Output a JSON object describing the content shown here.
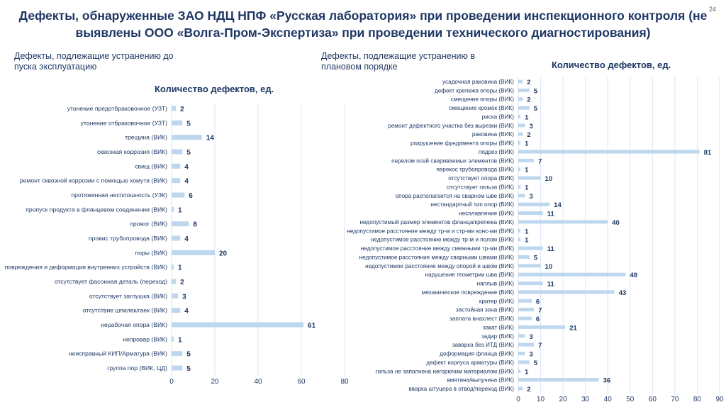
{
  "title": "Дефекты, обнаруженные ЗАО НДЦ НПФ «Русская лаборатория» при проведении инспекционного контроля (не выявлены ООО «Волга-Пром-Экспертиза» при проведении технического диагностирования)",
  "page_number": "24",
  "colors": {
    "bar": "#bdd7ee",
    "text": "#1f3864",
    "grid": "#dbe7f5"
  },
  "chart_data": [
    {
      "type": "bar",
      "orientation": "horizontal",
      "subtitle": "Дефекты, подлежащие устранению до пуска эксплуатацию",
      "title": "Количество дефектов, ед.",
      "xlim": [
        0,
        80
      ],
      "xticks": [
        0,
        20,
        40,
        60,
        80
      ],
      "grid": true,
      "categories": [
        "утонение предотбраковочное (УЗТ)",
        "утонение отбраковочное (УЗТ)",
        "трещина (ВИК)",
        "сквозная коррозия (ВИК)",
        "свищ (ВИК)",
        "ремонт сквозной коррозии с помощью хомута (ВИК)",
        "протяженная несплошность (УЗК)",
        "пропуск продукта в фланцевом соединении (ВИК)",
        "прожог (ВИК)",
        "провис трубопровода (ВИК)",
        "поры (ВИК)",
        "повреждения и деформация внутренних устройств (ВИК)",
        "отсутствует фасонная деталь (переход)",
        "отсутствует заглушка (ВИК)",
        "отсутствие шпилек/гаек (ВИК)",
        "нерабочая опора (ВИК)",
        "непровар (ВИК)",
        "неисправный КИП/Арматура (ВИК)",
        "группа пор (ВИК, ЦД)"
      ],
      "values": [
        2,
        5,
        14,
        5,
        4,
        4,
        6,
        1,
        8,
        4,
        20,
        1,
        2,
        3,
        4,
        61,
        1,
        5,
        5
      ]
    },
    {
      "type": "bar",
      "orientation": "horizontal",
      "subtitle": "Дефекты, подлежащие устранению в плановом порядке",
      "title": "Количество дефектов, ед.",
      "xlim": [
        0,
        90
      ],
      "xticks": [
        0,
        10,
        20,
        30,
        40,
        50,
        60,
        70,
        80,
        90
      ],
      "grid": true,
      "categories": [
        "усадочная раковина (ВИК)",
        "дефект крепежа опоры (ВИК)",
        "смещение опоры (ВИК)",
        "смещение кромок (ВИК)",
        "риска (ВИК)",
        "ремонт дефектного участка без вырезки (ВИК)",
        "раковина (ВИК)",
        "разрушение фундамента опоры (ВИК)",
        "подрез (ВИК)",
        "перелом осей свариваемых элементов (ВИК)",
        "перекос трубопровода (ВИК)",
        "отсутствует опора (ВИК)",
        "отсутствует гильза (ВИК)",
        "опора располагается на сварном шве (ВИК)",
        "нестандартный тип опор (ВИК)",
        "несплавление (ВИК)",
        "недопустимый размер элементов фланца/крепежа (ВИК)",
        "недопустимое расстояние между тр-м и стр-ми конс-ми (ВИК)",
        "недопустимое расстояние между тр-м и полом (ВИК)",
        "недопустимое расстояние между смежными тр-ми (ВИК)",
        "недопустимое расстояние между сварными швами (ВИК)",
        "недопустимое расстояние между опорой и швом (ВИК)",
        "нарушение геометрии шва (ВИК)",
        "наплыв (ВИК)",
        "механическое повреждение (ВИК)",
        "кратер (ВИК)",
        "застойная зона (ВИК)",
        "заплата внахлест (ВИК)",
        "закат (ВИК)",
        "задир (ВИК)",
        "заварка без ИТД (ВИК)",
        "деформация фланца (ВИК)",
        "дефект корпуса арматуры (ВИК)",
        "гильза не заполнена негорючим материалом (ВИК)",
        "вмятина/выпучина (ВИК)",
        "вварка штуцера в отвод/переход (ВИК)"
      ],
      "values": [
        2,
        5,
        2,
        5,
        1,
        3,
        2,
        1,
        81,
        7,
        1,
        10,
        1,
        3,
        14,
        11,
        40,
        1,
        1,
        11,
        5,
        10,
        48,
        11,
        43,
        6,
        7,
        6,
        21,
        3,
        7,
        3,
        5,
        1,
        36,
        2
      ]
    }
  ]
}
